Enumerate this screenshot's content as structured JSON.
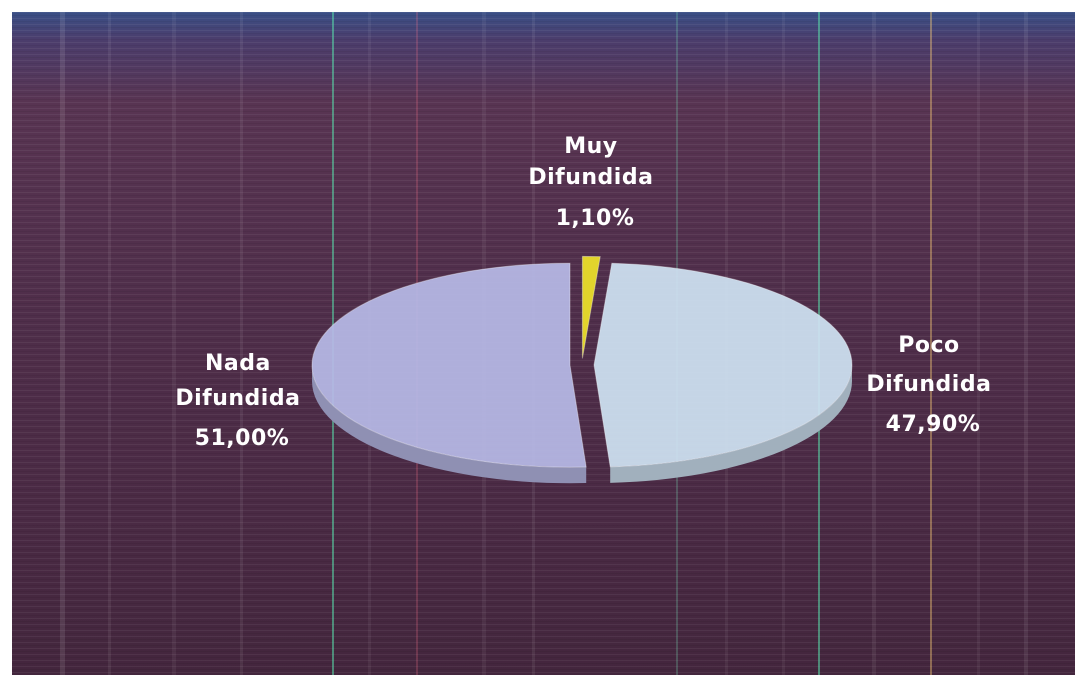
{
  "chart_data": {
    "type": "pie",
    "style": "3d-exploded",
    "title": "",
    "slices": [
      {
        "key": "muy",
        "line1": "Muy",
        "line2": "Difundida",
        "value_text": "1,10%",
        "value": 1.1,
        "color": "#e2d42c"
      },
      {
        "key": "poco",
        "line1": "Poco",
        "line2": "Difundida",
        "value_text": "47,90%",
        "value": 47.9,
        "color": "#cfe2f2"
      },
      {
        "key": "nada",
        "line1": "Nada",
        "line2": "Difundida",
        "value_text": "51,00%",
        "value": 51.0,
        "color": "#b7b9e6"
      }
    ],
    "legend": "none",
    "labels": "outside-slices"
  }
}
